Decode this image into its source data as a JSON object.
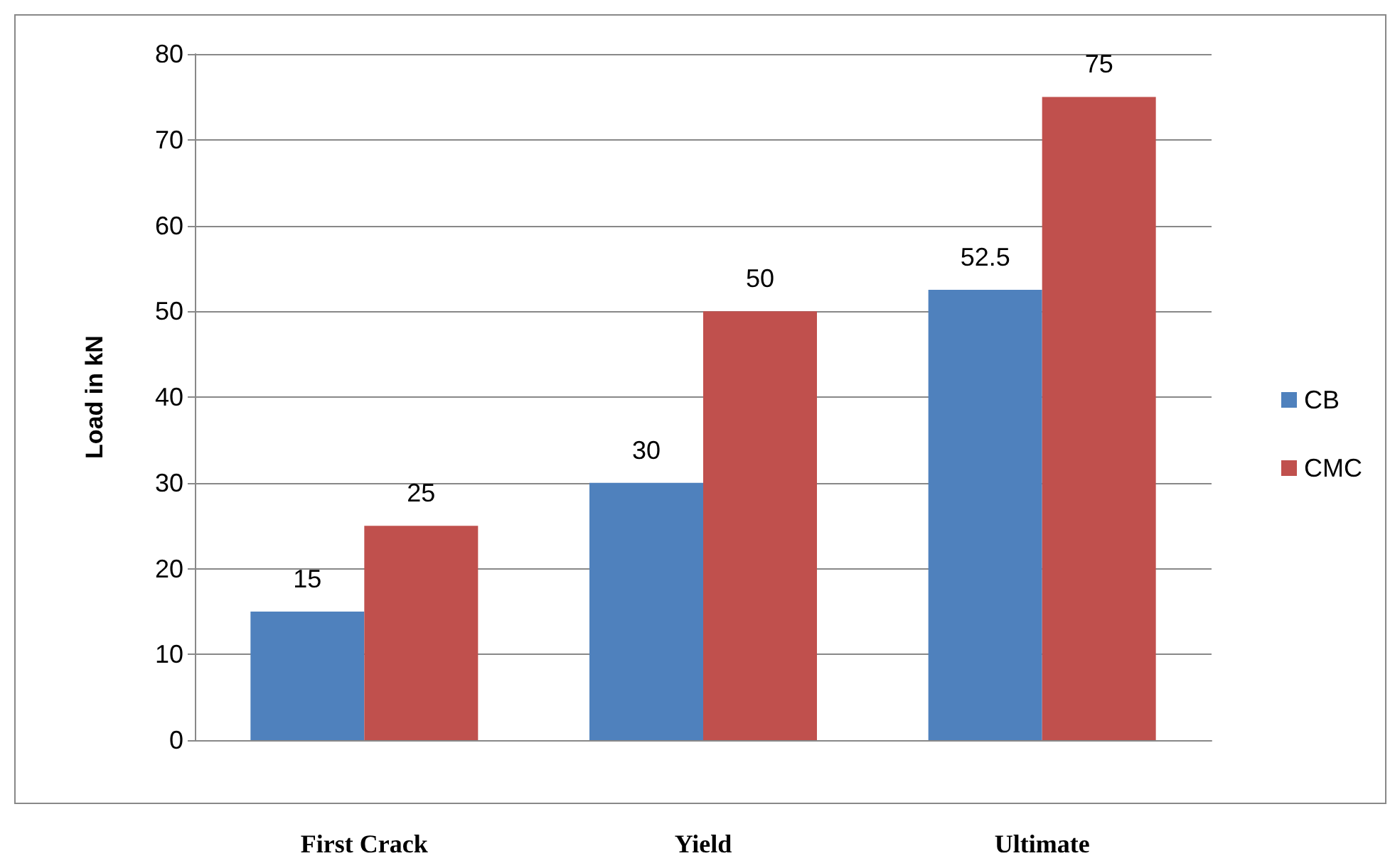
{
  "chart_data": {
    "type": "bar",
    "ylabel": "Load in kN",
    "categories": [
      "First Crack",
      "Yield",
      "Ultimate"
    ],
    "series": [
      {
        "name": "CB",
        "color": "#4f81bd",
        "values": [
          15,
          30,
          52.5
        ]
      },
      {
        "name": "CMC",
        "color": "#c0504d",
        "values": [
          25,
          50,
          75
        ]
      }
    ],
    "ylim": [
      0,
      80
    ],
    "yticks": [
      0,
      10,
      20,
      30,
      40,
      50,
      60,
      70,
      80
    ],
    "grid": "y",
    "legend": "right",
    "data_labels": true
  }
}
